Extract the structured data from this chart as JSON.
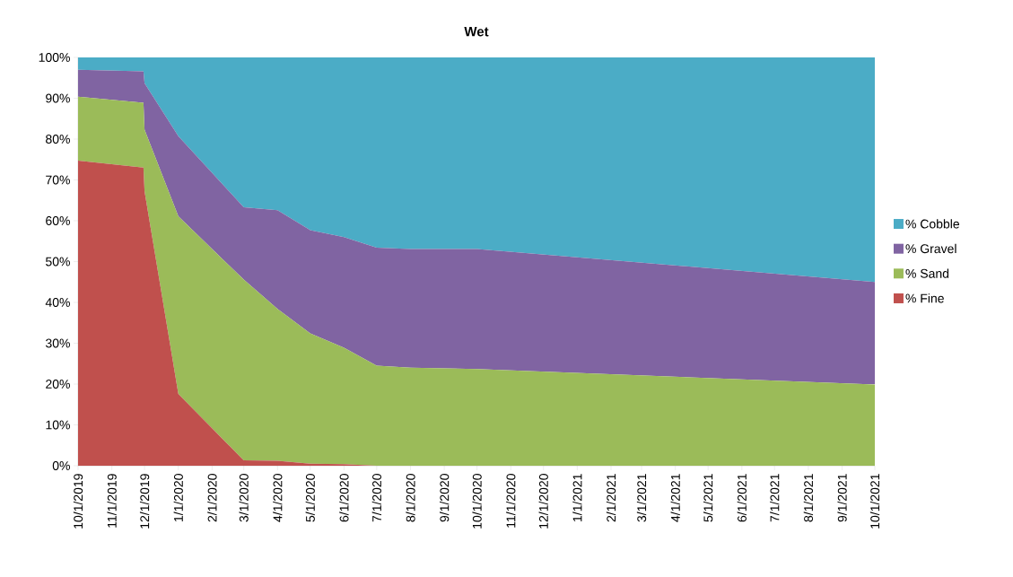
{
  "chart_data": {
    "type": "area",
    "title": "Wet",
    "stacked": true,
    "legend": "right",
    "x": [
      "2019-10-01",
      "2019-11-30",
      "2019-12-01",
      "2020-01-01",
      "2020-03-01",
      "2020-04-01",
      "2020-05-01",
      "2020-06-01",
      "2020-07-01",
      "2020-08-01",
      "2020-10-01",
      "2021-10-01"
    ],
    "series": [
      {
        "name": "% Fine",
        "color": "#c0504d",
        "values": [
          74.7,
          73.0,
          67.2,
          17.6,
          1.3,
          1.2,
          0.5,
          0.4,
          0,
          0,
          0,
          0
        ]
      },
      {
        "name": "% Sand",
        "color": "#9bbb59",
        "values": [
          15.7,
          15.9,
          15.1,
          43.5,
          44.3,
          37.2,
          31.9,
          28.5,
          24.5,
          24.0,
          23.7,
          19.9
        ]
      },
      {
        "name": "% Gravel",
        "color": "#8064a2",
        "values": [
          6.6,
          7.7,
          11.4,
          19.6,
          17.7,
          24.2,
          25.3,
          27.1,
          28.9,
          29.1,
          29.4,
          25.1
        ]
      },
      {
        "name": "% Cobble",
        "color": "#4bacc6",
        "values": [
          3.0,
          3.4,
          6.3,
          19.3,
          36.7,
          37.4,
          42.3,
          44.0,
          46.6,
          46.9,
          46.9,
          55.0
        ]
      }
    ],
    "xlim": [
      "2019-10-01",
      "2021-10-01"
    ],
    "xticks": [
      {
        "value": "2019-10-01",
        "label": "10/1/2019"
      },
      {
        "value": "2019-11-01",
        "label": "11/1/2019"
      },
      {
        "value": "2019-12-01",
        "label": "12/1/2019"
      },
      {
        "value": "2020-01-01",
        "label": "1/1/2020"
      },
      {
        "value": "2020-02-01",
        "label": "2/1/2020"
      },
      {
        "value": "2020-03-01",
        "label": "3/1/2020"
      },
      {
        "value": "2020-04-01",
        "label": "4/1/2020"
      },
      {
        "value": "2020-05-01",
        "label": "5/1/2020"
      },
      {
        "value": "2020-06-01",
        "label": "6/1/2020"
      },
      {
        "value": "2020-07-01",
        "label": "7/1/2020"
      },
      {
        "value": "2020-08-01",
        "label": "8/1/2020"
      },
      {
        "value": "2020-09-01",
        "label": "9/1/2020"
      },
      {
        "value": "2020-10-01",
        "label": "10/1/2020"
      },
      {
        "value": "2020-11-01",
        "label": "11/1/2020"
      },
      {
        "value": "2020-12-01",
        "label": "12/1/2020"
      },
      {
        "value": "2021-01-01",
        "label": "1/1/2021"
      },
      {
        "value": "2021-02-01",
        "label": "2/1/2021"
      },
      {
        "value": "2021-03-01",
        "label": "3/1/2021"
      },
      {
        "value": "2021-04-01",
        "label": "4/1/2021"
      },
      {
        "value": "2021-05-01",
        "label": "5/1/2021"
      },
      {
        "value": "2021-06-01",
        "label": "6/1/2021"
      },
      {
        "value": "2021-07-01",
        "label": "7/1/2021"
      },
      {
        "value": "2021-08-01",
        "label": "8/1/2021"
      },
      {
        "value": "2021-09-01",
        "label": "9/1/2021"
      },
      {
        "value": "2021-10-01",
        "label": "10/1/2021"
      }
    ],
    "ylim": [
      0,
      100
    ],
    "yticks": [
      {
        "value": 0,
        "label": "0%"
      },
      {
        "value": 10,
        "label": "10%"
      },
      {
        "value": 20,
        "label": "20%"
      },
      {
        "value": 30,
        "label": "30%"
      },
      {
        "value": 40,
        "label": "40%"
      },
      {
        "value": 50,
        "label": "50%"
      },
      {
        "value": 60,
        "label": "60%"
      },
      {
        "value": 70,
        "label": "70%"
      },
      {
        "value": 80,
        "label": "80%"
      },
      {
        "value": 90,
        "label": "90%"
      },
      {
        "value": 100,
        "label": "100%"
      }
    ]
  }
}
